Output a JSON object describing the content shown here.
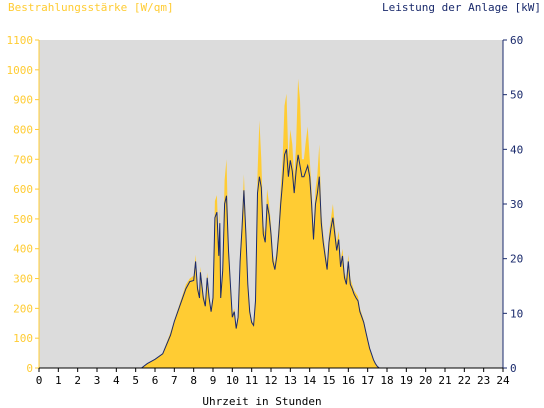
{
  "chart_data": {
    "type": "area",
    "title_left": "Bestrahlungsstärke [W/qm]",
    "title_right": "Leistung der Anlage [kW]",
    "xlabel": "Uhrzeit in Stunden",
    "xlim": [
      0,
      24
    ],
    "ylim_left": [
      0,
      1100
    ],
    "ylim_right": [
      0,
      60
    ],
    "x_ticks": [
      "0",
      "1",
      "2",
      "3",
      "4",
      "5",
      "6",
      "7",
      "8",
      "9",
      "10",
      "11",
      "12",
      "13",
      "14",
      "15",
      "16",
      "17",
      "18",
      "19",
      "20",
      "21",
      "22",
      "23",
      "24"
    ],
    "y_left_ticks": [
      "0",
      "100",
      "200",
      "300",
      "400",
      "500",
      "600",
      "700",
      "800",
      "900",
      "1000",
      "1100"
    ],
    "y_right_ticks": [
      "0",
      "10",
      "20",
      "30",
      "40",
      "50",
      "60"
    ],
    "grid": false,
    "colors": {
      "irradiance_fill": "#ffcc33",
      "power_line": "#1a2a6c",
      "plot_background": "#dcdcdc",
      "left_axis": "#ffcc33",
      "right_axis": "#1a2a6c",
      "x_axis": "#000000"
    },
    "series": [
      {
        "axis": "left",
        "style": "area",
        "x": [
          5.3,
          5.6,
          6.0,
          6.4,
          6.8,
          7.0,
          7.3,
          7.6,
          7.8,
          8.0,
          8.1,
          8.2,
          8.3,
          8.35,
          8.5,
          8.6,
          8.7,
          8.8,
          8.9,
          9.0,
          9.1,
          9.2,
          9.3,
          9.35,
          9.4,
          9.5,
          9.6,
          9.7,
          9.8,
          9.9,
          10.0,
          10.1,
          10.2,
          10.3,
          10.4,
          10.5,
          10.6,
          10.7,
          10.8,
          10.9,
          11.0,
          11.1,
          11.2,
          11.3,
          11.4,
          11.5,
          11.6,
          11.7,
          11.8,
          11.9,
          12.0,
          12.1,
          12.2,
          12.3,
          12.4,
          12.5,
          12.6,
          12.7,
          12.8,
          12.9,
          13.0,
          13.1,
          13.2,
          13.3,
          13.4,
          13.5,
          13.6,
          13.7,
          13.8,
          13.9,
          14.0,
          14.1,
          14.2,
          14.3,
          14.4,
          14.5,
          14.6,
          14.7,
          14.8,
          14.9,
          15.0,
          15.1,
          15.2,
          15.3,
          15.4,
          15.5,
          15.6,
          15.7,
          15.8,
          15.9,
          16.0,
          16.1,
          16.2,
          16.3,
          16.4,
          16.5,
          16.6,
          16.7,
          16.8,
          16.9,
          17.0,
          17.1,
          17.2,
          17.3,
          17.4,
          17.5,
          17.6,
          17.8,
          18.0,
          18.3,
          18.5,
          18.7,
          18.9,
          19.0,
          19.1,
          19.3
        ],
        "y": [
          0,
          15,
          30,
          50,
          120,
          160,
          220,
          280,
          300,
          310,
          380,
          280,
          250,
          340,
          250,
          220,
          320,
          250,
          200,
          250,
          560,
          580,
          400,
          540,
          250,
          350,
          630,
          700,
          420,
          300,
          180,
          200,
          140,
          180,
          380,
          500,
          650,
          480,
          300,
          200,
          160,
          150,
          240,
          650,
          830,
          700,
          480,
          450,
          600,
          550,
          480,
          380,
          350,
          400,
          480,
          600,
          700,
          880,
          920,
          700,
          800,
          750,
          640,
          750,
          970,
          900,
          700,
          700,
          760,
          810,
          700,
          600,
          460,
          600,
          650,
          750,
          520,
          450,
          400,
          350,
          450,
          500,
          550,
          480,
          420,
          460,
          360,
          400,
          320,
          300,
          380,
          300,
          280,
          260,
          250,
          240,
          200,
          180,
          160,
          130,
          100,
          70,
          50,
          30,
          15,
          5,
          0,
          0,
          0,
          0,
          0,
          0,
          0,
          0,
          0,
          0
        ]
      },
      {
        "axis": "right",
        "style": "line",
        "x": [
          5.3,
          5.6,
          6.0,
          6.4,
          6.8,
          7.0,
          7.3,
          7.6,
          7.8,
          8.0,
          8.1,
          8.2,
          8.3,
          8.35,
          8.5,
          8.6,
          8.7,
          8.8,
          8.9,
          9.0,
          9.1,
          9.2,
          9.3,
          9.35,
          9.4,
          9.5,
          9.6,
          9.7,
          9.8,
          9.9,
          10.0,
          10.1,
          10.2,
          10.3,
          10.4,
          10.5,
          10.6,
          10.7,
          10.8,
          10.9,
          11.0,
          11.1,
          11.2,
          11.3,
          11.4,
          11.5,
          11.6,
          11.7,
          11.8,
          11.9,
          12.0,
          12.1,
          12.2,
          12.3,
          12.4,
          12.5,
          12.6,
          12.7,
          12.8,
          12.9,
          13.0,
          13.1,
          13.2,
          13.3,
          13.4,
          13.5,
          13.6,
          13.7,
          13.8,
          13.9,
          14.0,
          14.1,
          14.2,
          14.3,
          14.4,
          14.5,
          14.6,
          14.7,
          14.8,
          14.9,
          15.0,
          15.1,
          15.2,
          15.3,
          15.4,
          15.5,
          15.6,
          15.7,
          15.8,
          15.9,
          16.0,
          16.1,
          16.2,
          16.3,
          16.4,
          16.5,
          16.6,
          16.7,
          16.8,
          16.9,
          17.0,
          17.1,
          17.2,
          17.3,
          17.4,
          17.5,
          17.6,
          17.8,
          18.0,
          18.3,
          18.5,
          18.7,
          18.9,
          19.0,
          19.1,
          19.3
        ],
        "y": [
          0,
          0.8,
          1.6,
          2.6,
          6,
          8.5,
          11.5,
          14.5,
          15.8,
          16,
          19.5,
          14.5,
          12.8,
          17.5,
          12.8,
          11.3,
          16.5,
          12.8,
          10.3,
          12.8,
          27.5,
          28.5,
          20.5,
          26.5,
          12.8,
          17.8,
          30,
          31.5,
          21.5,
          15.3,
          9.3,
          10.3,
          7.2,
          9.3,
          19.5,
          25.5,
          32.5,
          24.5,
          15.3,
          10.3,
          8.3,
          7.8,
          12.3,
          32,
          35,
          33,
          24.5,
          23,
          30,
          28,
          24.5,
          19.5,
          18,
          20.5,
          24.5,
          30,
          34,
          39,
          40,
          35,
          38,
          36,
          32,
          36,
          39,
          37,
          35,
          35,
          36,
          37,
          35,
          30,
          23.5,
          30,
          32,
          35,
          26.5,
          23,
          20.5,
          18,
          23,
          25.5,
          27.5,
          24.5,
          21.5,
          23.5,
          18.5,
          20.5,
          16.5,
          15.3,
          19.5,
          15.3,
          14.5,
          13.5,
          12.8,
          12.3,
          10.3,
          9.3,
          8.3,
          6.7,
          5.1,
          3.6,
          2.6,
          1.5,
          0.8,
          0.3,
          0,
          0,
          0,
          0,
          0,
          0,
          0,
          0,
          0,
          0
        ]
      }
    ]
  }
}
